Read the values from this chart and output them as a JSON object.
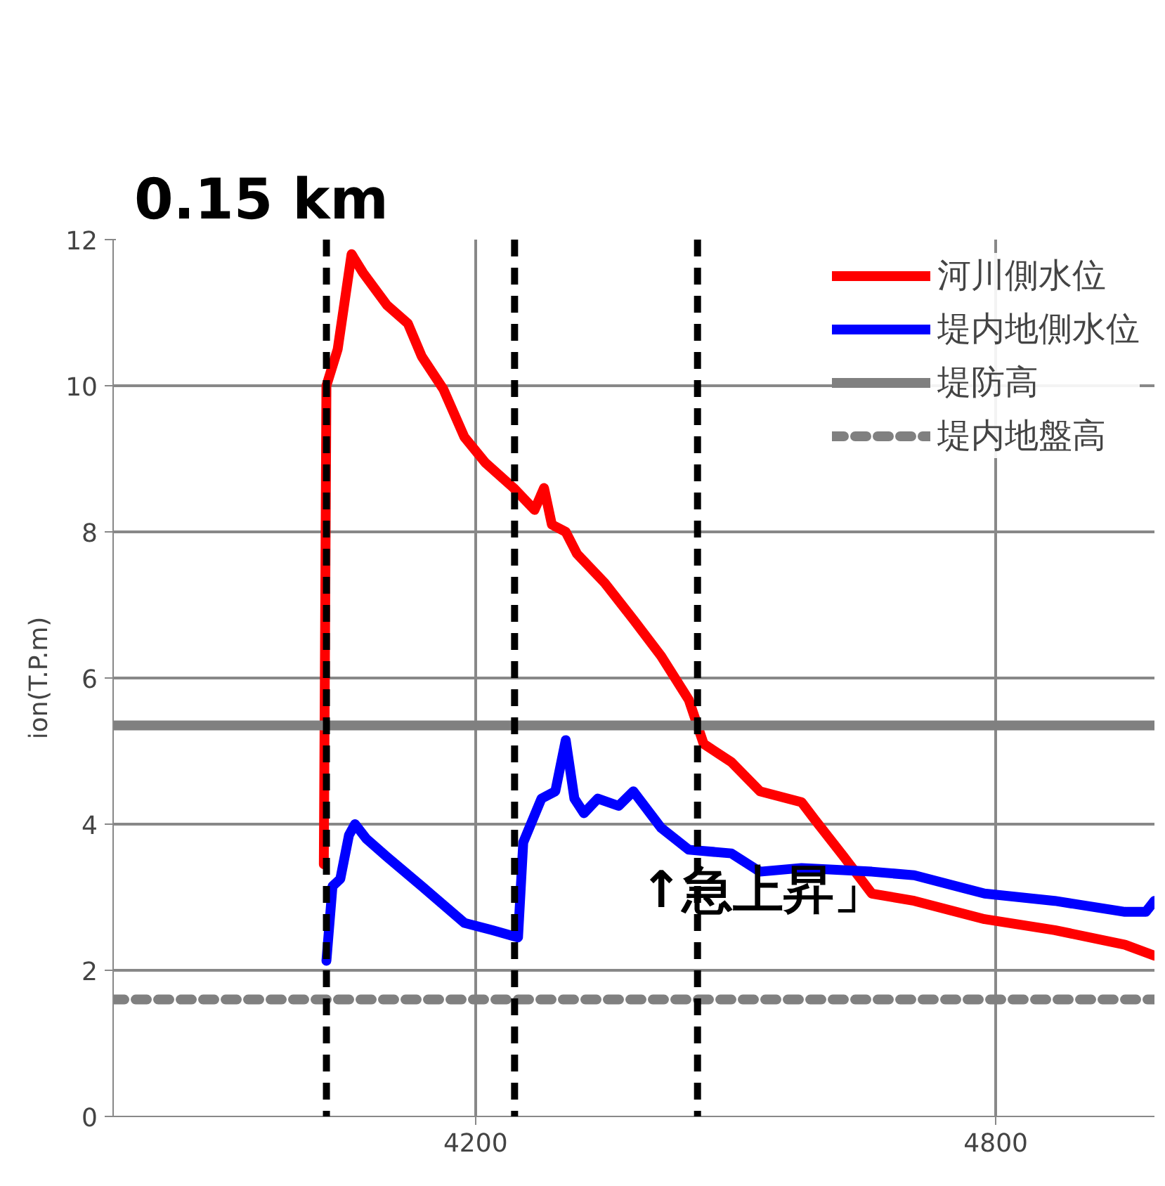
{
  "chart_data": {
    "type": "line",
    "title": "0.15 km",
    "ylabel": "ion(T.P.m)",
    "xlim": [
      3782,
      4983
    ],
    "ylim": [
      0,
      12
    ],
    "xticks": [
      4200,
      4800
    ],
    "yticks": [
      0,
      2,
      4,
      6,
      8,
      10,
      12
    ],
    "grid": true,
    "legend": "top right",
    "series": [
      {
        "name": "河川側水位",
        "color": "#ff0000",
        "line_style": "solid",
        "x": [
          4025,
          4028,
          4041,
          4057,
          4070,
          4098,
          4122,
          4138,
          4163,
          4187,
          4211,
          4244,
          4268,
          4279,
          4288,
          4304,
          4317,
          4349,
          4382,
          4414,
          4446,
          4463,
          4495,
          4528,
          4576,
          4592,
          4625,
          4657,
          4706,
          4787,
          4868,
          4949,
          4983
        ],
        "values": [
          3.45,
          10.0,
          10.5,
          11.8,
          11.55,
          11.1,
          10.85,
          10.4,
          9.95,
          9.3,
          8.95,
          8.6,
          8.3,
          8.6,
          8.1,
          8.0,
          7.7,
          7.3,
          6.8,
          6.3,
          5.7,
          5.1,
          4.85,
          4.45,
          4.3,
          4.05,
          3.55,
          3.05,
          2.95,
          2.7,
          2.55,
          2.35,
          2.2
        ]
      },
      {
        "name": "堤内地側水位",
        "color": "#0000ff",
        "line_style": "solid",
        "x": [
          4028,
          4035,
          4044,
          4054,
          4061,
          4074,
          4098,
          4138,
          4187,
          4219,
          4249,
          4255,
          4276,
          4292,
          4304,
          4314,
          4325,
          4341,
          4365,
          4382,
          4414,
          4446,
          4495,
          4528,
          4576,
          4657,
          4706,
          4787,
          4868,
          4949,
          4973,
          4983
        ],
        "values": [
          2.13,
          3.15,
          3.25,
          3.85,
          4.0,
          3.8,
          3.55,
          3.15,
          2.65,
          2.55,
          2.45,
          3.75,
          4.35,
          4.45,
          5.15,
          4.35,
          4.15,
          4.35,
          4.25,
          4.45,
          3.95,
          3.65,
          3.6,
          3.35,
          3.4,
          3.35,
          3.3,
          3.05,
          2.95,
          2.8,
          2.8,
          2.95
        ]
      },
      {
        "name": "堤防高",
        "color": "#808080",
        "line_style": "solid",
        "x": [
          3782,
          4983
        ],
        "values": [
          5.35,
          5.35
        ]
      },
      {
        "name": "堤内地盤高",
        "color": "#808080",
        "line_style": "dotted",
        "x": [
          3782,
          4983
        ],
        "values": [
          1.6,
          1.6
        ]
      }
    ],
    "ref_lines": [
      {
        "axis": "x",
        "value": 4028,
        "label": null,
        "color": "#000000",
        "line_style": "dashed"
      },
      {
        "axis": "x",
        "value": 4245,
        "label": null,
        "color": "#000000",
        "line_style": "dashed"
      },
      {
        "axis": "x",
        "value": 4456,
        "label": null,
        "color": "#000000",
        "line_style": "dashed"
      }
    ],
    "annotations": [
      "↑急上昇」"
    ]
  }
}
